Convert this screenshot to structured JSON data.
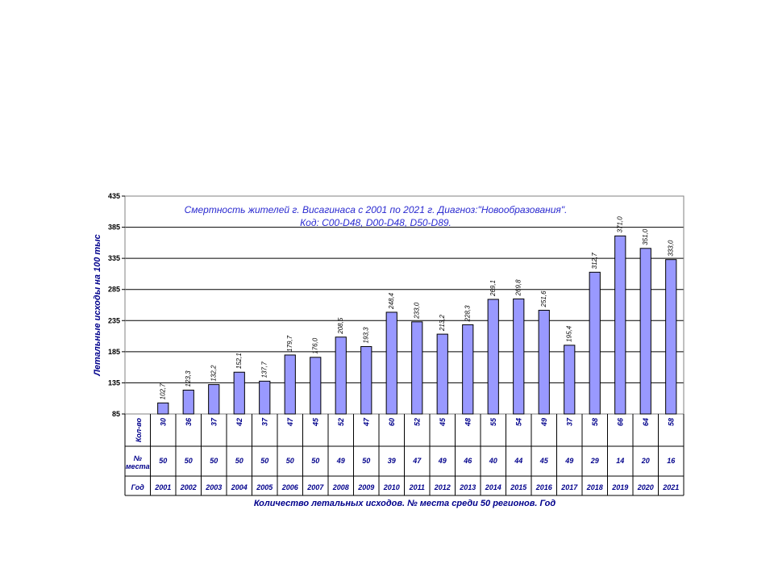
{
  "chart_data": {
    "type": "bar",
    "title_lines": [
      "Смертность жителей г. Висагинаса с 2001 по 2021 г. Диагноз:\"Новообразования\".",
      "Код: C00-D48, D00-D48, D50-D89."
    ],
    "ylabel": "Летальные исходы на 100 тыс",
    "xlabel": "Количество летальных исходов. № места среди 50 регионов.   Год",
    "ylim": [
      85,
      435
    ],
    "yticks": [
      "85",
      "135",
      "185",
      "235",
      "285",
      "335",
      "385",
      "435"
    ],
    "grid": true,
    "bar_color": "#9999ff",
    "years": [
      "2001",
      "2002",
      "2003",
      "2004",
      "2005",
      "2006",
      "2007",
      "2008",
      "2009",
      "2010",
      "2011",
      "2012",
      "2013",
      "2014",
      "2015",
      "2016",
      "2017",
      "2018",
      "2019",
      "2020",
      "2021"
    ],
    "values": [
      102.7,
      123.3,
      132.2,
      152.1,
      137.7,
      179.7,
      176.0,
      208.5,
      193.3,
      248.4,
      233.0,
      213.2,
      228.3,
      269.1,
      269.8,
      251.6,
      195.4,
      312.7,
      371.0,
      351.0,
      333.0
    ],
    "value_labels": [
      "102,7",
      "123,3",
      "132,2",
      "152,1",
      "137,7",
      "179,7",
      "176,0",
      "208,5",
      "193,3",
      "248,4",
      "233,0",
      "213,2",
      "228,3",
      "269,1",
      "269,8",
      "251,6",
      "195,4",
      "312,7",
      "371,0",
      "351,0",
      "333,0"
    ],
    "table_rows": [
      {
        "header": "Кол-во",
        "cells": [
          "30",
          "36",
          "37",
          "42",
          "37",
          "47",
          "45",
          "52",
          "47",
          "60",
          "52",
          "45",
          "48",
          "55",
          "54",
          "49",
          "37",
          "58",
          "66",
          "64",
          "58"
        ]
      },
      {
        "header_lines": [
          "№",
          "места"
        ],
        "cells": [
          "50",
          "50",
          "50",
          "50",
          "50",
          "50",
          "50",
          "49",
          "50",
          "39",
          "47",
          "49",
          "46",
          "40",
          "44",
          "45",
          "49",
          "29",
          "14",
          "20",
          "16"
        ]
      },
      {
        "header": "Год",
        "cells": [
          "2001",
          "2002",
          "2003",
          "2004",
          "2005",
          "2006",
          "2007",
          "2008",
          "2009",
          "2010",
          "2011",
          "2012",
          "2013",
          "2014",
          "2015",
          "2016",
          "2017",
          "2018",
          "2019",
          "2020",
          "2021"
        ]
      }
    ]
  }
}
